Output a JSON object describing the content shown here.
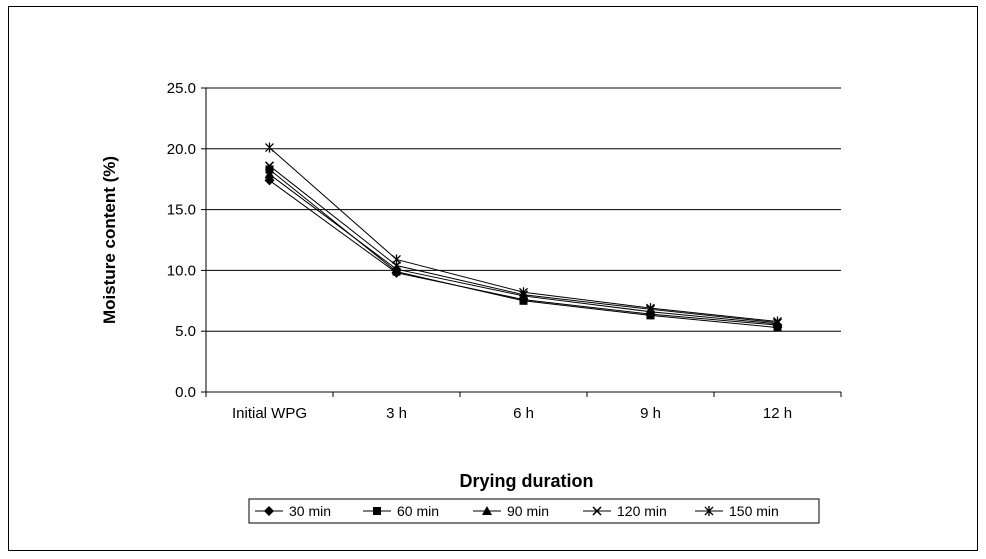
{
  "chart_data": {
    "type": "line",
    "xlabel": "Drying duration",
    "ylabel": "Moisture content (%)",
    "categories": [
      "Initial WPG",
      "3 h",
      "6 h",
      "9 h",
      "12 h"
    ],
    "yticks": [
      "0.0",
      "5.0",
      "10.0",
      "15.0",
      "20.0",
      "25.0"
    ],
    "ylim": [
      0,
      25
    ],
    "grid": true,
    "legend_position": "bottom",
    "series": [
      {
        "name": "30 min",
        "marker": "diamond",
        "values": [
          17.4,
          9.8,
          7.6,
          6.4,
          5.5
        ]
      },
      {
        "name": "60 min",
        "marker": "square",
        "values": [
          18.3,
          9.9,
          7.5,
          6.3,
          5.3
        ]
      },
      {
        "name": "90 min",
        "marker": "triangle",
        "values": [
          17.9,
          10.1,
          7.9,
          6.6,
          5.6
        ]
      },
      {
        "name": "120 min",
        "marker": "x",
        "values": [
          18.6,
          10.4,
          8.0,
          6.8,
          5.7
        ]
      },
      {
        "name": "150 min",
        "marker": "star",
        "values": [
          20.1,
          10.9,
          8.2,
          6.9,
          5.8
        ]
      }
    ],
    "colors": {
      "line": "#000000",
      "grid": "#000000",
      "background": "#ffffff"
    }
  }
}
